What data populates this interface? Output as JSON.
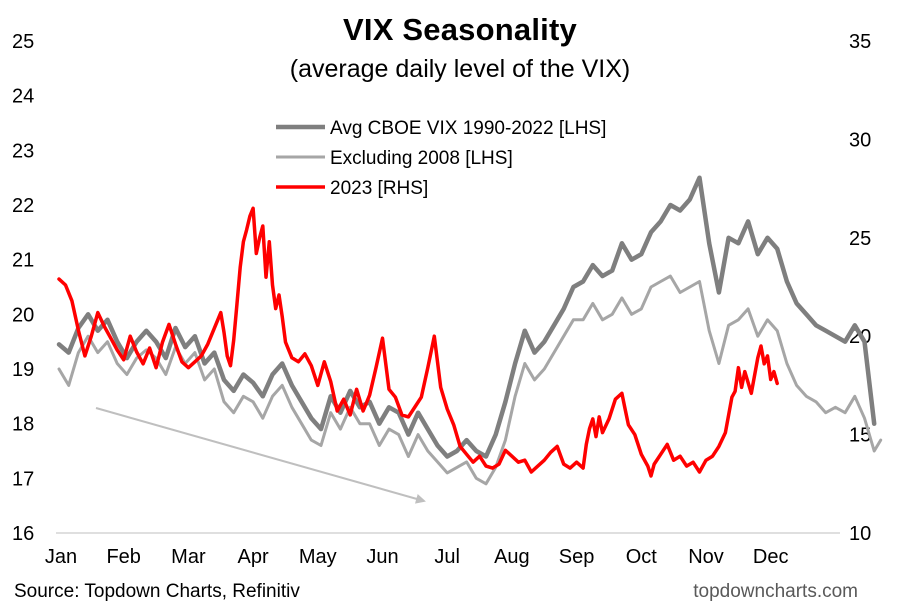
{
  "chart_data": {
    "type": "line",
    "title": "VIX Seasonality",
    "subtitle": "(average daily level of the VIX)",
    "x_categories": [
      "Jan",
      "Feb",
      "Mar",
      "Apr",
      "May",
      "Jun",
      "Jul",
      "Aug",
      "Sep",
      "Oct",
      "Nov",
      "Dec"
    ],
    "y_left": {
      "ticks": [
        16,
        17,
        18,
        19,
        20,
        21,
        22,
        23,
        24,
        25
      ],
      "range": [
        16,
        25
      ]
    },
    "y_right": {
      "ticks": [
        10,
        15,
        20,
        25,
        30,
        35
      ],
      "range": [
        10,
        35
      ]
    },
    "legend_position": "top-center",
    "series": [
      {
        "name": "Avg CBOE VIX 1990-2022 [LHS]",
        "axis": "left",
        "color": "#7f7f7f",
        "points": [
          [
            0.0,
            19.45
          ],
          [
            0.15,
            19.3
          ],
          [
            0.3,
            19.75
          ],
          [
            0.45,
            20.0
          ],
          [
            0.6,
            19.7
          ],
          [
            0.75,
            19.9
          ],
          [
            0.9,
            19.5
          ],
          [
            1.05,
            19.2
          ],
          [
            1.2,
            19.5
          ],
          [
            1.35,
            19.7
          ],
          [
            1.5,
            19.5
          ],
          [
            1.65,
            19.2
          ],
          [
            1.8,
            19.75
          ],
          [
            1.95,
            19.4
          ],
          [
            2.1,
            19.6
          ],
          [
            2.25,
            19.1
          ],
          [
            2.4,
            19.3
          ],
          [
            2.55,
            18.8
          ],
          [
            2.7,
            18.6
          ],
          [
            2.85,
            18.9
          ],
          [
            3.0,
            18.75
          ],
          [
            3.15,
            18.5
          ],
          [
            3.3,
            18.9
          ],
          [
            3.45,
            19.1
          ],
          [
            3.6,
            18.7
          ],
          [
            3.75,
            18.4
          ],
          [
            3.9,
            18.1
          ],
          [
            4.05,
            17.9
          ],
          [
            4.2,
            18.5
          ],
          [
            4.35,
            18.2
          ],
          [
            4.5,
            18.6
          ],
          [
            4.65,
            18.3
          ],
          [
            4.8,
            18.4
          ],
          [
            4.95,
            18.0
          ],
          [
            5.1,
            18.3
          ],
          [
            5.25,
            18.2
          ],
          [
            5.4,
            17.8
          ],
          [
            5.55,
            18.2
          ],
          [
            5.7,
            17.9
          ],
          [
            5.85,
            17.6
          ],
          [
            6.0,
            17.4
          ],
          [
            6.15,
            17.5
          ],
          [
            6.3,
            17.7
          ],
          [
            6.45,
            17.5
          ],
          [
            6.6,
            17.4
          ],
          [
            6.75,
            17.8
          ],
          [
            6.9,
            18.4
          ],
          [
            7.05,
            19.1
          ],
          [
            7.2,
            19.7
          ],
          [
            7.35,
            19.3
          ],
          [
            7.5,
            19.5
          ],
          [
            7.65,
            19.8
          ],
          [
            7.8,
            20.1
          ],
          [
            7.95,
            20.5
          ],
          [
            8.1,
            20.6
          ],
          [
            8.25,
            20.9
          ],
          [
            8.4,
            20.7
          ],
          [
            8.55,
            20.8
          ],
          [
            8.7,
            21.3
          ],
          [
            8.85,
            21.0
          ],
          [
            9.0,
            21.1
          ],
          [
            9.15,
            21.5
          ],
          [
            9.3,
            21.7
          ],
          [
            9.45,
            22.0
          ],
          [
            9.6,
            21.9
          ],
          [
            9.75,
            22.1
          ],
          [
            9.9,
            22.5
          ],
          [
            10.05,
            21.3
          ],
          [
            10.2,
            20.4
          ],
          [
            10.35,
            21.4
          ],
          [
            10.5,
            21.3
          ],
          [
            10.65,
            21.7
          ],
          [
            10.8,
            21.1
          ],
          [
            10.95,
            21.4
          ],
          [
            11.1,
            21.2
          ],
          [
            11.25,
            20.6
          ],
          [
            11.4,
            20.2
          ],
          [
            11.55,
            20.0
          ],
          [
            11.7,
            19.8
          ],
          [
            11.85,
            19.7
          ],
          [
            12.0,
            19.6
          ],
          [
            12.15,
            19.5
          ],
          [
            12.3,
            19.8
          ],
          [
            12.45,
            19.5
          ],
          [
            12.6,
            18.0
          ]
        ]
      },
      {
        "name": "Excluding 2008 [LHS]",
        "axis": "left",
        "color": "#a6a6a6",
        "points": [
          [
            0.0,
            19.0
          ],
          [
            0.15,
            18.7
          ],
          [
            0.3,
            19.3
          ],
          [
            0.45,
            19.6
          ],
          [
            0.6,
            19.3
          ],
          [
            0.75,
            19.5
          ],
          [
            0.9,
            19.1
          ],
          [
            1.05,
            18.9
          ],
          [
            1.2,
            19.2
          ],
          [
            1.35,
            19.35
          ],
          [
            1.5,
            19.2
          ],
          [
            1.65,
            18.9
          ],
          [
            1.8,
            19.4
          ],
          [
            1.95,
            19.1
          ],
          [
            2.1,
            19.3
          ],
          [
            2.25,
            18.8
          ],
          [
            2.4,
            19.0
          ],
          [
            2.55,
            18.4
          ],
          [
            2.7,
            18.2
          ],
          [
            2.85,
            18.5
          ],
          [
            3.0,
            18.4
          ],
          [
            3.15,
            18.1
          ],
          [
            3.3,
            18.5
          ],
          [
            3.45,
            18.7
          ],
          [
            3.6,
            18.3
          ],
          [
            3.75,
            18.0
          ],
          [
            3.9,
            17.7
          ],
          [
            4.05,
            17.6
          ],
          [
            4.2,
            18.2
          ],
          [
            4.35,
            17.9
          ],
          [
            4.5,
            18.3
          ],
          [
            4.65,
            18.0
          ],
          [
            4.8,
            18.0
          ],
          [
            4.95,
            17.6
          ],
          [
            5.1,
            17.9
          ],
          [
            5.25,
            17.8
          ],
          [
            5.4,
            17.4
          ],
          [
            5.55,
            17.8
          ],
          [
            5.7,
            17.5
          ],
          [
            5.85,
            17.3
          ],
          [
            6.0,
            17.1
          ],
          [
            6.15,
            17.2
          ],
          [
            6.3,
            17.3
          ],
          [
            6.45,
            17.0
          ],
          [
            6.6,
            16.9
          ],
          [
            6.75,
            17.2
          ],
          [
            6.9,
            17.7
          ],
          [
            7.05,
            18.5
          ],
          [
            7.2,
            19.1
          ],
          [
            7.35,
            18.8
          ],
          [
            7.5,
            19.0
          ],
          [
            7.65,
            19.3
          ],
          [
            7.8,
            19.6
          ],
          [
            7.95,
            19.9
          ],
          [
            8.1,
            19.9
          ],
          [
            8.25,
            20.2
          ],
          [
            8.4,
            19.9
          ],
          [
            8.55,
            20.0
          ],
          [
            8.7,
            20.3
          ],
          [
            8.85,
            20.0
          ],
          [
            9.0,
            20.1
          ],
          [
            9.15,
            20.5
          ],
          [
            9.3,
            20.6
          ],
          [
            9.45,
            20.7
          ],
          [
            9.6,
            20.4
          ],
          [
            9.75,
            20.5
          ],
          [
            9.9,
            20.6
          ],
          [
            10.05,
            19.7
          ],
          [
            10.2,
            19.1
          ],
          [
            10.35,
            19.8
          ],
          [
            10.5,
            19.9
          ],
          [
            10.65,
            20.1
          ],
          [
            10.8,
            19.6
          ],
          [
            10.95,
            19.9
          ],
          [
            11.1,
            19.7
          ],
          [
            11.25,
            19.1
          ],
          [
            11.4,
            18.7
          ],
          [
            11.55,
            18.5
          ],
          [
            11.7,
            18.4
          ],
          [
            11.85,
            18.2
          ],
          [
            12.0,
            18.3
          ],
          [
            12.15,
            18.2
          ],
          [
            12.3,
            18.5
          ],
          [
            12.45,
            18.1
          ],
          [
            12.6,
            17.5
          ],
          [
            12.7,
            17.7
          ]
        ]
      },
      {
        "name": "2023 [RHS]",
        "axis": "right",
        "color": "#ff0000",
        "points": [
          [
            0.0,
            22.9
          ],
          [
            0.1,
            22.6
          ],
          [
            0.2,
            21.8
          ],
          [
            0.3,
            20.3
          ],
          [
            0.4,
            19.0
          ],
          [
            0.5,
            20.0
          ],
          [
            0.6,
            21.2
          ],
          [
            0.7,
            20.5
          ],
          [
            0.8,
            19.9
          ],
          [
            0.9,
            19.3
          ],
          [
            1.0,
            18.8
          ],
          [
            1.1,
            20.0
          ],
          [
            1.2,
            19.2
          ],
          [
            1.3,
            18.6
          ],
          [
            1.4,
            19.4
          ],
          [
            1.5,
            18.4
          ],
          [
            1.6,
            19.7
          ],
          [
            1.7,
            20.6
          ],
          [
            1.8,
            19.6
          ],
          [
            1.9,
            18.7
          ],
          [
            2.0,
            18.4
          ],
          [
            2.1,
            18.7
          ],
          [
            2.2,
            19.0
          ],
          [
            2.3,
            19.6
          ],
          [
            2.4,
            20.4
          ],
          [
            2.5,
            21.2
          ],
          [
            2.55,
            20.2
          ],
          [
            2.6,
            19.0
          ],
          [
            2.65,
            18.5
          ],
          [
            2.7,
            19.8
          ],
          [
            2.75,
            21.6
          ],
          [
            2.8,
            23.5
          ],
          [
            2.85,
            24.8
          ],
          [
            2.9,
            25.4
          ],
          [
            2.95,
            26.1
          ],
          [
            3.0,
            26.5
          ],
          [
            3.05,
            24.2
          ],
          [
            3.1,
            25.0
          ],
          [
            3.15,
            25.6
          ],
          [
            3.2,
            23.0
          ],
          [
            3.25,
            24.8
          ],
          [
            3.3,
            22.6
          ],
          [
            3.35,
            21.4
          ],
          [
            3.4,
            22.1
          ],
          [
            3.45,
            21.0
          ],
          [
            3.5,
            19.7
          ],
          [
            3.6,
            18.9
          ],
          [
            3.7,
            18.7
          ],
          [
            3.8,
            19.1
          ],
          [
            3.9,
            18.5
          ],
          [
            4.0,
            17.5
          ],
          [
            4.1,
            18.7
          ],
          [
            4.2,
            17.7
          ],
          [
            4.3,
            16.2
          ],
          [
            4.4,
            16.8
          ],
          [
            4.5,
            16.0
          ],
          [
            4.6,
            17.3
          ],
          [
            4.7,
            16.2
          ],
          [
            4.8,
            17.0
          ],
          [
            4.9,
            18.4
          ],
          [
            5.0,
            19.9
          ],
          [
            5.1,
            17.3
          ],
          [
            5.2,
            16.9
          ],
          [
            5.3,
            16.0
          ],
          [
            5.4,
            15.9
          ],
          [
            5.5,
            16.4
          ],
          [
            5.6,
            16.9
          ],
          [
            5.7,
            18.4
          ],
          [
            5.8,
            20.0
          ],
          [
            5.85,
            18.7
          ],
          [
            5.9,
            17.4
          ],
          [
            6.0,
            16.3
          ],
          [
            6.1,
            15.5
          ],
          [
            6.2,
            14.4
          ],
          [
            6.3,
            14.0
          ],
          [
            6.4,
            13.6
          ],
          [
            6.5,
            13.9
          ],
          [
            6.6,
            13.4
          ],
          [
            6.7,
            13.3
          ],
          [
            6.8,
            13.5
          ],
          [
            6.9,
            14.2
          ],
          [
            7.0,
            13.9
          ],
          [
            7.1,
            13.6
          ],
          [
            7.2,
            13.7
          ],
          [
            7.3,
            13.1
          ],
          [
            7.4,
            13.4
          ],
          [
            7.5,
            13.7
          ],
          [
            7.6,
            14.1
          ],
          [
            7.7,
            14.4
          ],
          [
            7.8,
            13.5
          ],
          [
            7.9,
            13.3
          ],
          [
            8.0,
            13.6
          ],
          [
            8.1,
            13.3
          ],
          [
            8.15,
            14.5
          ],
          [
            8.2,
            15.3
          ],
          [
            8.25,
            15.8
          ],
          [
            8.3,
            14.9
          ],
          [
            8.35,
            15.9
          ],
          [
            8.4,
            15.1
          ],
          [
            8.5,
            15.8
          ],
          [
            8.6,
            16.8
          ],
          [
            8.7,
            17.1
          ],
          [
            8.75,
            16.3
          ],
          [
            8.8,
            15.5
          ],
          [
            8.9,
            15.0
          ],
          [
            9.0,
            14.0
          ],
          [
            9.1,
            13.4
          ],
          [
            9.15,
            12.9
          ],
          [
            9.2,
            13.5
          ],
          [
            9.3,
            14.0
          ],
          [
            9.4,
            14.5
          ],
          [
            9.5,
            13.7
          ],
          [
            9.6,
            13.9
          ],
          [
            9.7,
            13.4
          ],
          [
            9.8,
            13.6
          ],
          [
            9.9,
            13.1
          ],
          [
            10.0,
            13.7
          ],
          [
            10.1,
            13.9
          ],
          [
            10.2,
            14.4
          ],
          [
            10.3,
            15.1
          ],
          [
            10.4,
            16.9
          ],
          [
            10.45,
            17.2
          ],
          [
            10.5,
            18.4
          ],
          [
            10.55,
            17.4
          ],
          [
            10.6,
            18.2
          ],
          [
            10.7,
            17.1
          ],
          [
            10.8,
            18.9
          ],
          [
            10.85,
            19.5
          ],
          [
            10.9,
            18.6
          ],
          [
            10.95,
            19.0
          ],
          [
            11.0,
            17.8
          ],
          [
            11.05,
            18.2
          ],
          [
            11.1,
            17.6
          ]
        ]
      }
    ]
  },
  "footer": {
    "source": "Source: Topdown Charts, Refinitiv",
    "site": "topdowncharts.com"
  }
}
